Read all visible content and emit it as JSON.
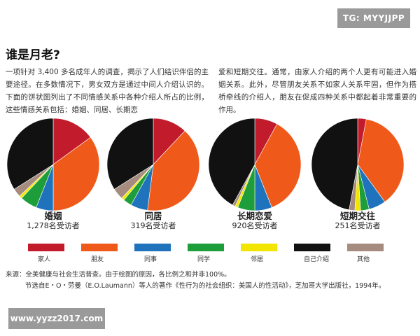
{
  "watermark_top": "TG: MYYJJPP",
  "watermark_bottom": "www.yyzz2017.com",
  "title": "谁是月老?",
  "paragraph_left": "一项针对 3,400 多名成年人的调查，揭示了人们结识伴侣的主要途径。在多数情况下，男女双方是通过中间人介绍认识的。下面的饼状图列出了不同情感关系中各种介绍人所占的比例，这些情感关系包括：婚姻、同居、长期恋",
  "paragraph_right": "爱和短期交往。通常，由家人介绍的两个人更有可能进入婚姻关系。此外，尽管朋友关系不如家人关系牢固，但作为搭桥牵线的介绍人，朋友在促成四种关系中都起着非常重要的作用。",
  "source_line": "来源：全美健康与社会生活普查。由于绘图的原因，各比例之和并非100%。",
  "excerpt_line": "节选自E・O・劳曼（E.O.Laumann）等人的著作《性行为的社会组织：美国人的性活动》，芝加哥大学出版社，1994年。",
  "legend": [
    {
      "label": "家人",
      "color": "#c21c2c"
    },
    {
      "label": "朋友",
      "color": "#ef5a1a"
    },
    {
      "label": "同事",
      "color": "#1f73bd"
    },
    {
      "label": "同学",
      "color": "#1e9e3a"
    },
    {
      "label": "邻居",
      "color": "#f2e600"
    },
    {
      "label": "自己介绍",
      "color": "#111111"
    },
    {
      "label": "其他",
      "color": "#a58c7f"
    }
  ],
  "chart_data": [
    {
      "type": "pie",
      "name": "婚姻",
      "count_label": "1,278名受访者",
      "categories": [
        "家人",
        "朋友",
        "同事",
        "同学",
        "邻居",
        "自己介绍",
        "其他"
      ],
      "values": [
        15,
        35,
        6,
        6,
        1,
        34,
        3
      ]
    },
    {
      "type": "pie",
      "name": "同居",
      "count_label": "319名受访者",
      "categories": [
        "家人",
        "朋友",
        "同事",
        "同学",
        "邻居",
        "自己介绍",
        "其他"
      ],
      "values": [
        12,
        40,
        6,
        3,
        1,
        34,
        4
      ]
    },
    {
      "type": "pie",
      "name": "长期恋爱",
      "count_label": "920名受访者",
      "categories": [
        "家人",
        "朋友",
        "同事",
        "同学",
        "邻居",
        "自己介绍",
        "其他"
      ],
      "values": [
        8,
        36,
        6,
        6,
        1,
        42,
        1
      ]
    },
    {
      "type": "pie",
      "name": "短期交往",
      "count_label": "251名受访者",
      "categories": [
        "家人",
        "朋友",
        "同事",
        "同学",
        "邻居",
        "自己介绍",
        "其他"
      ],
      "values": [
        3,
        37,
        6,
        3,
        2,
        47,
        2
      ]
    }
  ]
}
